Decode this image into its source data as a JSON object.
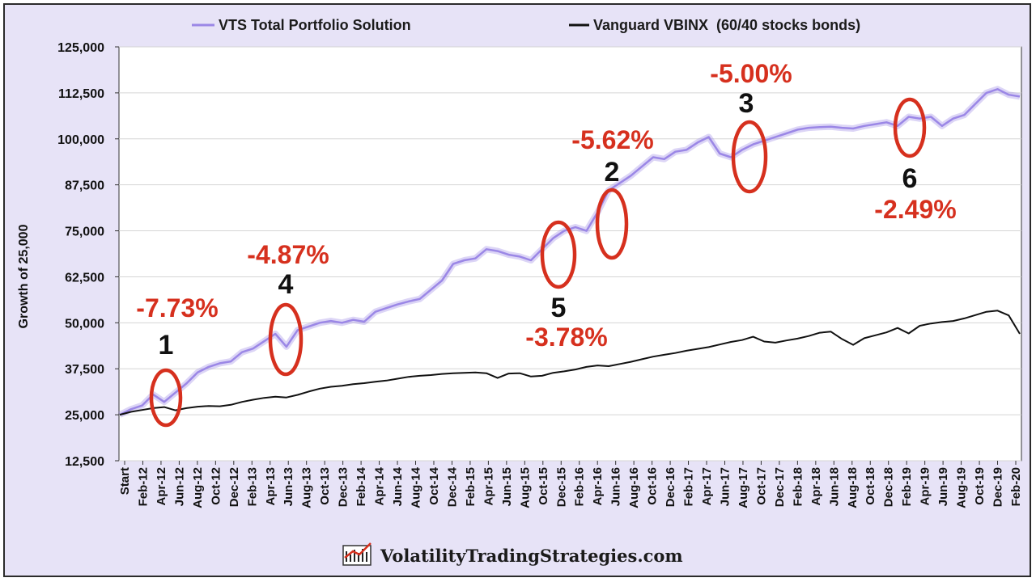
{
  "chart_data": {
    "type": "line",
    "ylabel": "Growth of 25,000",
    "ylim": [
      12500,
      125000
    ],
    "yticks": [
      "125,000",
      "112,500",
      "100,000",
      "87,500",
      "75,000",
      "62,500",
      "50,000",
      "37,500",
      "25,000",
      "12,500"
    ],
    "ytick_values": [
      125000,
      112500,
      100000,
      87500,
      75000,
      62500,
      50000,
      37500,
      25000,
      12500
    ],
    "xtick_labels": [
      "Start",
      "Feb-12",
      "Apr-12",
      "Jun-12",
      "Aug-12",
      "Oct-12",
      "Dec-12",
      "Feb-13",
      "Apr-13",
      "Jun-13",
      "Aug-13",
      "Oct-13",
      "Dec-13",
      "Feb-14",
      "Apr-14",
      "Jun-14",
      "Aug-14",
      "Oct-14",
      "Dec-14",
      "Feb-15",
      "Apr-15",
      "Jun-15",
      "Aug-15",
      "Oct-15",
      "Dec-15",
      "Feb-16",
      "Apr-16",
      "Jun-16",
      "Aug-16",
      "Oct-16",
      "Dec-16",
      "Feb-17",
      "Apr-17",
      "Jun-17",
      "Aug-17",
      "Oct-17",
      "Dec-17",
      "Feb-18",
      "Apr-18",
      "Jun-18",
      "Aug-18",
      "Oct-18",
      "Dec-18",
      "Feb-19",
      "Apr-19",
      "Jun-19",
      "Aug-19",
      "Oct-19",
      "Dec-19",
      "Feb-20"
    ],
    "legend_position": "top",
    "series": [
      {
        "name": "VTS Total Portfolio Solution",
        "color": "#9b87e6",
        "values": [
          25000,
          26500,
          27500,
          30500,
          28500,
          31000,
          33500,
          36500,
          38000,
          39000,
          39500,
          42000,
          43000,
          45000,
          47000,
          43500,
          48000,
          49000,
          50000,
          50500,
          50000,
          50800,
          50300,
          53000,
          54000,
          55000,
          55800,
          56500,
          59000,
          61500,
          66000,
          67000,
          67500,
          70000,
          69500,
          68500,
          68000,
          67000,
          70000,
          73000,
          75000,
          76000,
          75000,
          80000,
          86000,
          88000,
          90000,
          92500,
          95000,
          94500,
          96500,
          97000,
          99000,
          100500,
          96000,
          95000,
          97000,
          98500,
          99500,
          100500,
          101500,
          102500,
          103000,
          103200,
          103300,
          103000,
          102800,
          103500,
          104000,
          104500,
          103500,
          106000,
          105500,
          106000,
          103500,
          105500,
          106500,
          109500,
          112500,
          113500,
          112000,
          111500
        ],
        "points_hint": "monthly approximations"
      },
      {
        "name": "Vanguard VBINX  (60/40 stocks bonds)",
        "color": "#111111",
        "values": [
          25000,
          25800,
          26300,
          26800,
          27100,
          26200,
          26800,
          27200,
          27400,
          27300,
          27700,
          28500,
          29100,
          29600,
          29900,
          29700,
          30400,
          31300,
          32100,
          32600,
          32900,
          33300,
          33600,
          34000,
          34300,
          34800,
          35300,
          35600,
          35800,
          36100,
          36300,
          36400,
          36500,
          36300,
          35000,
          36200,
          36300,
          35400,
          35600,
          36400,
          36800,
          37300,
          38000,
          38400,
          38200,
          38800,
          39400,
          40100,
          40800,
          41300,
          41800,
          42400,
          42900,
          43400,
          44100,
          44800,
          45300,
          46200,
          44900,
          44600,
          45200,
          45700,
          46400,
          47300,
          47600,
          45600,
          44000,
          45800,
          46600,
          47400,
          48600,
          47100,
          49200,
          49800,
          50200,
          50500,
          51200,
          52100,
          53000,
          53300,
          52000,
          47000
        ]
      }
    ],
    "annotations": [
      {
        "num": "1",
        "pct": "-7.73%"
      },
      {
        "num": "4",
        "pct": "-4.87%"
      },
      {
        "num": "5",
        "pct": "-3.78%"
      },
      {
        "num": "2",
        "pct": "-5.62%"
      },
      {
        "num": "3",
        "pct": "-5.00%"
      },
      {
        "num": "6",
        "pct": "-2.49%"
      }
    ],
    "annotation_color": "#d6301e"
  },
  "footer": {
    "text": "VolatilityTradingStrategies.com"
  }
}
